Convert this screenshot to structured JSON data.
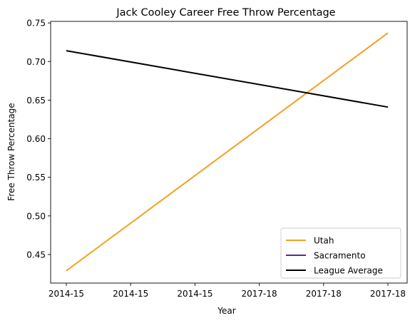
{
  "chart_data": {
    "type": "line",
    "title": "Jack Cooley Career Free Throw Percentage",
    "xlabel": "Year",
    "ylabel": "Free Throw Percentage",
    "x_ticks": [
      "2014-15",
      "2014-15",
      "2014-15",
      "2017-18",
      "2017-18",
      "2017-18"
    ],
    "xlim": [
      0,
      1
    ],
    "ylim": [
      0.413,
      0.752
    ],
    "y_ticks": [
      0.45,
      0.5,
      0.55,
      0.6,
      0.65,
      0.7,
      0.75
    ],
    "y_tick_labels": [
      "0.45",
      "0.50",
      "0.55",
      "0.60",
      "0.65",
      "0.70",
      "0.75"
    ],
    "grid": false,
    "legend_position": "bottom-right",
    "series": [
      {
        "name": "Utah",
        "color": "#f4a020",
        "x": [
          0,
          1
        ],
        "values": [
          0.429,
          0.737
        ]
      },
      {
        "name": "Sacramento",
        "color": "#5a2d82",
        "x": [],
        "values": []
      },
      {
        "name": "League Average",
        "color": "#000000",
        "x": [
          0,
          1
        ],
        "values": [
          0.714,
          0.641
        ]
      }
    ]
  }
}
